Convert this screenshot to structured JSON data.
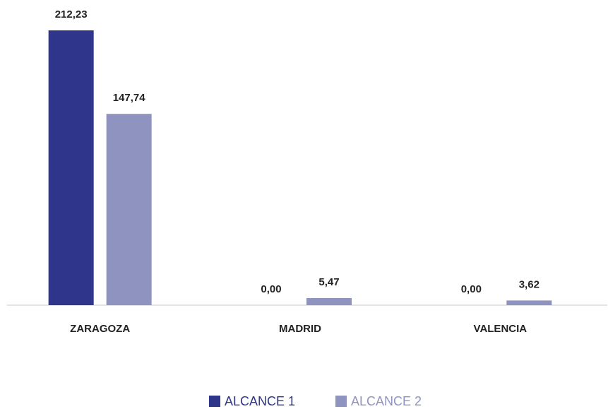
{
  "chart_data": {
    "type": "bar",
    "categories": [
      "ZARAGOZA",
      "MADRID",
      "VALENCIA"
    ],
    "series": [
      {
        "name": "ALCANCE 1",
        "color": "#2f358b",
        "values": [
          212.23,
          0.0,
          0.0
        ],
        "value_labels": [
          "212,23",
          "0,00",
          "0,00"
        ]
      },
      {
        "name": "ALCANCE 2",
        "color": "#8f93c0",
        "values": [
          147.74,
          5.47,
          3.62
        ],
        "value_labels": [
          "147,74",
          "5,47",
          "3,62"
        ]
      }
    ]
  }
}
